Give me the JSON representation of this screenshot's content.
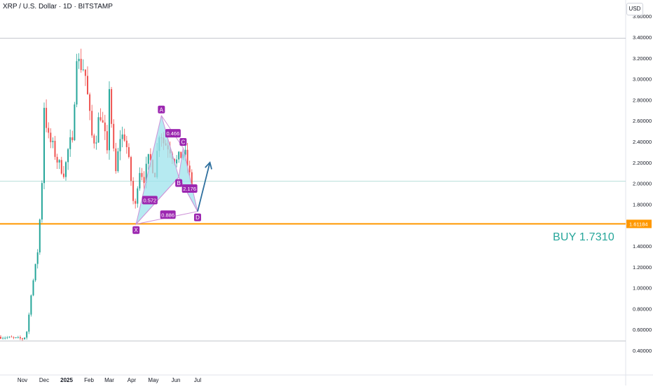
{
  "header": {
    "symbol_line": "XRP / U.S. Dollar · 1D · BITSTAMP",
    "currency_button": "USD"
  },
  "colors": {
    "up": "#26a69a",
    "down": "#ef5350",
    "pattern_fill": "#9ee3ec",
    "pattern_line": "#ce93d8",
    "label_bg": "#9c27b0",
    "support": "#ff9800",
    "arrow": "#2e6f9e"
  },
  "chart_data": {
    "type": "candlestick",
    "title": "XRP / U.S. Dollar · 1D · BITSTAMP",
    "x_tick_labels": [
      "Nov",
      "Dec",
      "2025",
      "Feb",
      "Mar",
      "Apr",
      "May",
      "Jun",
      "Jul"
    ],
    "y_tick_labels": [
      "3.60000",
      "3.40000",
      "3.20000",
      "3.00000",
      "2.80000",
      "2.60000",
      "2.40000",
      "2.20000",
      "2.00000",
      "1.80000",
      "1.60000",
      "1.40000",
      "1.20000",
      "1.00000",
      "0.80000",
      "0.60000",
      "0.40000"
    ],
    "ylim": [
      0.4,
      3.65
    ],
    "grid": false,
    "candle_anchors": [
      {
        "date": "2024-10-01",
        "price": 0.53
      },
      {
        "date": "2024-10-20",
        "price": 0.52
      },
      {
        "date": "2024-11-05",
        "price": 0.51
      },
      {
        "date": "2024-11-10",
        "price": 0.6
      },
      {
        "date": "2024-11-15",
        "price": 0.95
      },
      {
        "date": "2024-11-20",
        "price": 1.15
      },
      {
        "date": "2024-11-25",
        "price": 1.4
      },
      {
        "date": "2024-12-01",
        "price": 2.15
      },
      {
        "date": "2024-12-03",
        "price": 2.75
      },
      {
        "date": "2024-12-08",
        "price": 2.45
      },
      {
        "date": "2024-12-15",
        "price": 2.35
      },
      {
        "date": "2024-12-22",
        "price": 2.2
      },
      {
        "date": "2024-12-31",
        "price": 2.1
      },
      {
        "date": "2025-01-07",
        "price": 2.4
      },
      {
        "date": "2025-01-12",
        "price": 2.35
      },
      {
        "date": "2025-01-16",
        "price": 3.3
      },
      {
        "date": "2025-01-20",
        "price": 3.15
      },
      {
        "date": "2025-01-28",
        "price": 3.1
      },
      {
        "date": "2025-02-03",
        "price": 2.7
      },
      {
        "date": "2025-02-07",
        "price": 2.45
      },
      {
        "date": "2025-02-12",
        "price": 2.4
      },
      {
        "date": "2025-02-18",
        "price": 2.7
      },
      {
        "date": "2025-02-25",
        "price": 2.45
      },
      {
        "date": "2025-03-01",
        "price": 2.2
      },
      {
        "date": "2025-03-03",
        "price": 2.95
      },
      {
        "date": "2025-03-08",
        "price": 2.35
      },
      {
        "date": "2025-03-12",
        "price": 2.1
      },
      {
        "date": "2025-03-18",
        "price": 2.45
      },
      {
        "date": "2025-03-25",
        "price": 2.45
      },
      {
        "date": "2025-04-01",
        "price": 2.1
      },
      {
        "date": "2025-04-07",
        "price": 1.7
      },
      {
        "date": "2025-04-13",
        "price": 2.15
      },
      {
        "date": "2025-04-20",
        "price": 2.05
      },
      {
        "date": "2025-04-27",
        "price": 2.25
      },
      {
        "date": "2025-05-05",
        "price": 2.1
      },
      {
        "date": "2025-05-12",
        "price": 2.55
      },
      {
        "date": "2025-05-16",
        "price": 2.4
      },
      {
        "date": "2025-05-25",
        "price": 2.35
      },
      {
        "date": "2025-06-03",
        "price": 2.2
      },
      {
        "date": "2025-06-08",
        "price": 2.25
      },
      {
        "date": "2025-06-15",
        "price": 2.3
      },
      {
        "date": "2025-06-20",
        "price": 2.15
      },
      {
        "date": "2025-06-24",
        "price": 2.0
      }
    ],
    "horizontal_lines": [
      {
        "name": "support",
        "value": 1.61184,
        "label": "1.61184"
      },
      {
        "name": "upper-ref",
        "value": 3.39
      },
      {
        "name": "current-ref",
        "value": 2.02
      },
      {
        "name": "lower-ref",
        "value": 0.49
      }
    ],
    "pattern": {
      "points": [
        {
          "label": "X",
          "date": "2025-04-07",
          "price": 1.61
        },
        {
          "label": "A",
          "date": "2025-05-12",
          "price": 2.65
        },
        {
          "label": "B",
          "date": "2025-06-05",
          "price": 2.06
        },
        {
          "label": "C",
          "date": "2025-06-11",
          "price": 2.34
        },
        {
          "label": "D",
          "date": "2025-07-01",
          "price": 1.731
        }
      ],
      "ratios": [
        {
          "text": "0.572",
          "date": "2025-04-26",
          "price": 1.84
        },
        {
          "text": "0.466",
          "date": "2025-05-28",
          "price": 2.48
        },
        {
          "text": "2.176",
          "date": "2025-06-20",
          "price": 1.95
        },
        {
          "text": "0.886",
          "date": "2025-05-21",
          "price": 1.7
        }
      ]
    },
    "projection_arrow": [
      {
        "date": "2025-07-01",
        "price": 1.731
      },
      {
        "date": "2025-07-18",
        "price": 2.2
      }
    ],
    "buy_annotation": "BUY 1.7310"
  }
}
